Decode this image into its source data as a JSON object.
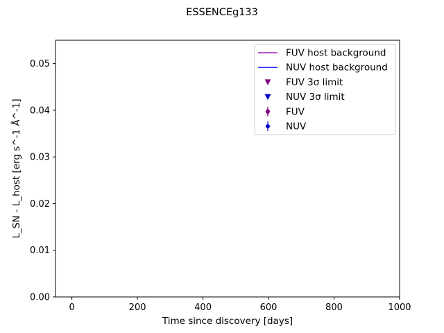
{
  "chart_data": {
    "type": "scatter",
    "title": "ESSENCEg133",
    "xlabel": "Time since discovery [days]",
    "ylabel": "L_SN - L_host [erg s^-1 Å^-1]",
    "xlim": [
      -50,
      1000
    ],
    "ylim": [
      0,
      0.055
    ],
    "xticks": [
      0,
      200,
      400,
      600,
      800,
      1000
    ],
    "xtick_labels": [
      "0",
      "200",
      "400",
      "600",
      "800",
      "1000"
    ],
    "yticks": [
      0,
      0.01,
      0.02,
      0.03,
      0.04,
      0.05
    ],
    "ytick_labels": [
      "0.00",
      "0.01",
      "0.02",
      "0.03",
      "0.04",
      "0.05"
    ],
    "grid": false,
    "legend_position": "top-right",
    "series": [
      {
        "name": "FUV host background",
        "kind": "line",
        "color": "#9b1fb5",
        "points": []
      },
      {
        "name": "NUV host background",
        "kind": "line",
        "color": "#2b2bff",
        "points": []
      },
      {
        "name": "FUV 3σ limit",
        "kind": "marker-down-triangle",
        "color": "#800080",
        "points": []
      },
      {
        "name": "NUV 3σ limit",
        "kind": "marker-down-triangle",
        "color": "#0000cd",
        "points": []
      },
      {
        "name": "FUV",
        "kind": "marker-diamond-errorbar",
        "color": "#800080",
        "points": []
      },
      {
        "name": "NUV",
        "kind": "marker-circle-errorbar",
        "color": "#0000cd",
        "points": []
      }
    ]
  }
}
